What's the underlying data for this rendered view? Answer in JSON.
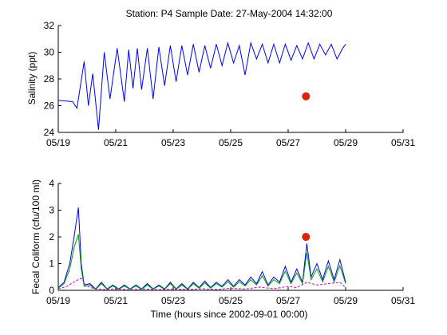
{
  "figure_title": "Station: P4  Sample Date: 27-May-2004 14:32:00",
  "colors": {
    "model_blue": "#0000ff",
    "model_green": "#00a000",
    "model_magenta": "#cc00cc",
    "sample_red": "#dd2200",
    "axis": "#000000"
  },
  "chart_data": [
    {
      "type": "line",
      "title": "Station: P4  Sample Date: 27-May-2004 14:32:00",
      "xlabel": "",
      "ylabel": "Salinity (ppt)",
      "xlim": [
        0,
        12
      ],
      "ylim": [
        24,
        32
      ],
      "x_tick_values": [
        0,
        2,
        4,
        6,
        8,
        10,
        12
      ],
      "x_tick_labels": [
        "05/19",
        "05/21",
        "05/23",
        "05/25",
        "05/27",
        "05/29",
        "05/31"
      ],
      "y_ticks": [
        24,
        26,
        28,
        30,
        32
      ],
      "grid": false,
      "x_unit_note": "days after 05/19",
      "series": [
        {
          "name": "",
          "color": "#0000ff",
          "x": [
            0.0,
            0.5,
            0.65,
            0.9,
            1.05,
            1.2,
            1.4,
            1.6,
            1.8,
            2.05,
            2.3,
            2.45,
            2.6,
            2.75,
            2.9,
            3.1,
            3.3,
            3.5,
            3.7,
            3.9,
            4.1,
            4.3,
            4.5,
            4.7,
            4.9,
            5.1,
            5.3,
            5.5,
            5.7,
            5.9,
            6.1,
            6.3,
            6.5,
            6.7,
            6.9,
            7.1,
            7.3,
            7.5,
            7.7,
            7.9,
            8.1,
            8.3,
            8.5,
            8.7,
            8.9,
            9.1,
            9.3,
            9.5,
            9.7,
            9.9,
            10.0
          ],
          "values": [
            26.4,
            26.3,
            25.8,
            29.3,
            26.0,
            28.4,
            24.2,
            30.0,
            26.5,
            30.3,
            26.3,
            30.2,
            27.3,
            30.3,
            27.2,
            30.3,
            26.5,
            30.4,
            27.5,
            30.5,
            27.8,
            30.5,
            28.3,
            30.6,
            28.5,
            30.5,
            28.8,
            30.6,
            29.0,
            30.7,
            29.2,
            30.5,
            28.3,
            30.7,
            29.5,
            30.6,
            29.2,
            30.6,
            29.2,
            30.6,
            29.4,
            30.5,
            29.5,
            30.7,
            29.5,
            30.6,
            29.8,
            30.6,
            29.5,
            30.3,
            30.6
          ]
        }
      ],
      "samples": [
        {
          "x": 8.62,
          "y": 26.7,
          "color": "#dd2200"
        }
      ]
    },
    {
      "type": "line",
      "title": "",
      "xlabel": "Time (hours since 2002-09-01 00:00)",
      "ylabel": "Fecal Coliform (cfu/100 ml)",
      "xlim": [
        0,
        12
      ],
      "ylim": [
        0,
        4
      ],
      "x_tick_values": [
        0,
        2,
        4,
        6,
        8,
        10,
        12
      ],
      "x_tick_labels": [
        "05/19",
        "05/21",
        "05/23",
        "05/25",
        "05/27",
        "05/29",
        "05/31"
      ],
      "y_ticks": [
        0,
        1,
        2,
        3,
        4
      ],
      "grid": false,
      "x_unit_note": "days after 05/19",
      "series": [
        {
          "name": "",
          "color": "#0000ff",
          "x": [
            0.0,
            0.2,
            0.4,
            0.55,
            0.7,
            0.8,
            0.9,
            1.1,
            1.3,
            1.5,
            1.7,
            1.9,
            2.1,
            2.3,
            2.5,
            2.7,
            2.9,
            3.1,
            3.3,
            3.5,
            3.7,
            3.9,
            4.1,
            4.3,
            4.5,
            4.7,
            4.9,
            5.1,
            5.3,
            5.5,
            5.7,
            5.9,
            6.1,
            6.3,
            6.5,
            6.7,
            6.9,
            7.1,
            7.3,
            7.5,
            7.7,
            7.9,
            8.1,
            8.3,
            8.5,
            8.65,
            8.8,
            9.0,
            9.2,
            9.4,
            9.6,
            9.8,
            10.0
          ],
          "values": [
            0.1,
            0.3,
            1.0,
            2.0,
            3.1,
            1.0,
            0.2,
            0.25,
            0.05,
            0.3,
            0.05,
            0.2,
            0.05,
            0.2,
            0.05,
            0.2,
            0.05,
            0.25,
            0.05,
            0.2,
            0.05,
            0.3,
            0.05,
            0.25,
            0.05,
            0.3,
            0.1,
            0.35,
            0.1,
            0.3,
            0.15,
            0.4,
            0.15,
            0.4,
            0.2,
            0.5,
            0.25,
            0.7,
            0.2,
            0.5,
            0.3,
            0.9,
            0.3,
            0.8,
            0.3,
            1.75,
            0.5,
            1.0,
            0.4,
            1.1,
            0.4,
            1.15,
            0.3
          ]
        },
        {
          "name": "",
          "color": "#00a000",
          "x": [
            0.0,
            0.2,
            0.4,
            0.55,
            0.7,
            0.8,
            0.9,
            1.1,
            1.3,
            1.5,
            1.7,
            1.9,
            2.1,
            2.3,
            2.5,
            2.7,
            2.9,
            3.1,
            3.3,
            3.5,
            3.7,
            3.9,
            4.1,
            4.3,
            4.5,
            4.7,
            4.9,
            5.1,
            5.3,
            5.5,
            5.7,
            5.9,
            6.1,
            6.3,
            6.5,
            6.7,
            6.9,
            7.1,
            7.3,
            7.5,
            7.7,
            7.9,
            8.1,
            8.3,
            8.5,
            8.65,
            8.8,
            9.0,
            9.2,
            9.4,
            9.6,
            9.8,
            10.0
          ],
          "values": [
            0.08,
            0.25,
            0.8,
            1.6,
            2.1,
            0.8,
            0.15,
            0.2,
            0.04,
            0.25,
            0.04,
            0.16,
            0.04,
            0.16,
            0.04,
            0.16,
            0.04,
            0.2,
            0.04,
            0.16,
            0.04,
            0.25,
            0.04,
            0.2,
            0.04,
            0.25,
            0.08,
            0.28,
            0.08,
            0.25,
            0.12,
            0.32,
            0.12,
            0.32,
            0.16,
            0.4,
            0.2,
            0.55,
            0.16,
            0.4,
            0.25,
            0.72,
            0.25,
            0.65,
            0.25,
            1.4,
            0.4,
            0.8,
            0.32,
            0.9,
            0.32,
            0.92,
            0.25
          ]
        },
        {
          "name": "",
          "color": "#cc00cc",
          "x": [
            0.0,
            0.3,
            0.6,
            0.8,
            1.0,
            1.3,
            1.6,
            2.0,
            2.5,
            3.0,
            3.5,
            4.0,
            4.5,
            5.0,
            5.5,
            6.0,
            6.5,
            7.0,
            7.5,
            8.0,
            8.3,
            8.65,
            9.0,
            9.4,
            9.8,
            10.0
          ],
          "values": [
            0.05,
            0.15,
            0.35,
            0.45,
            0.15,
            0.05,
            0.03,
            0.05,
            0.02,
            0.05,
            0.02,
            0.05,
            0.03,
            0.06,
            0.03,
            0.08,
            0.05,
            0.12,
            0.06,
            0.15,
            0.1,
            0.3,
            0.2,
            0.25,
            0.3,
            0.1
          ]
        }
      ],
      "samples": [
        {
          "x": 8.62,
          "y": 2.0,
          "color": "#dd2200"
        }
      ]
    }
  ]
}
